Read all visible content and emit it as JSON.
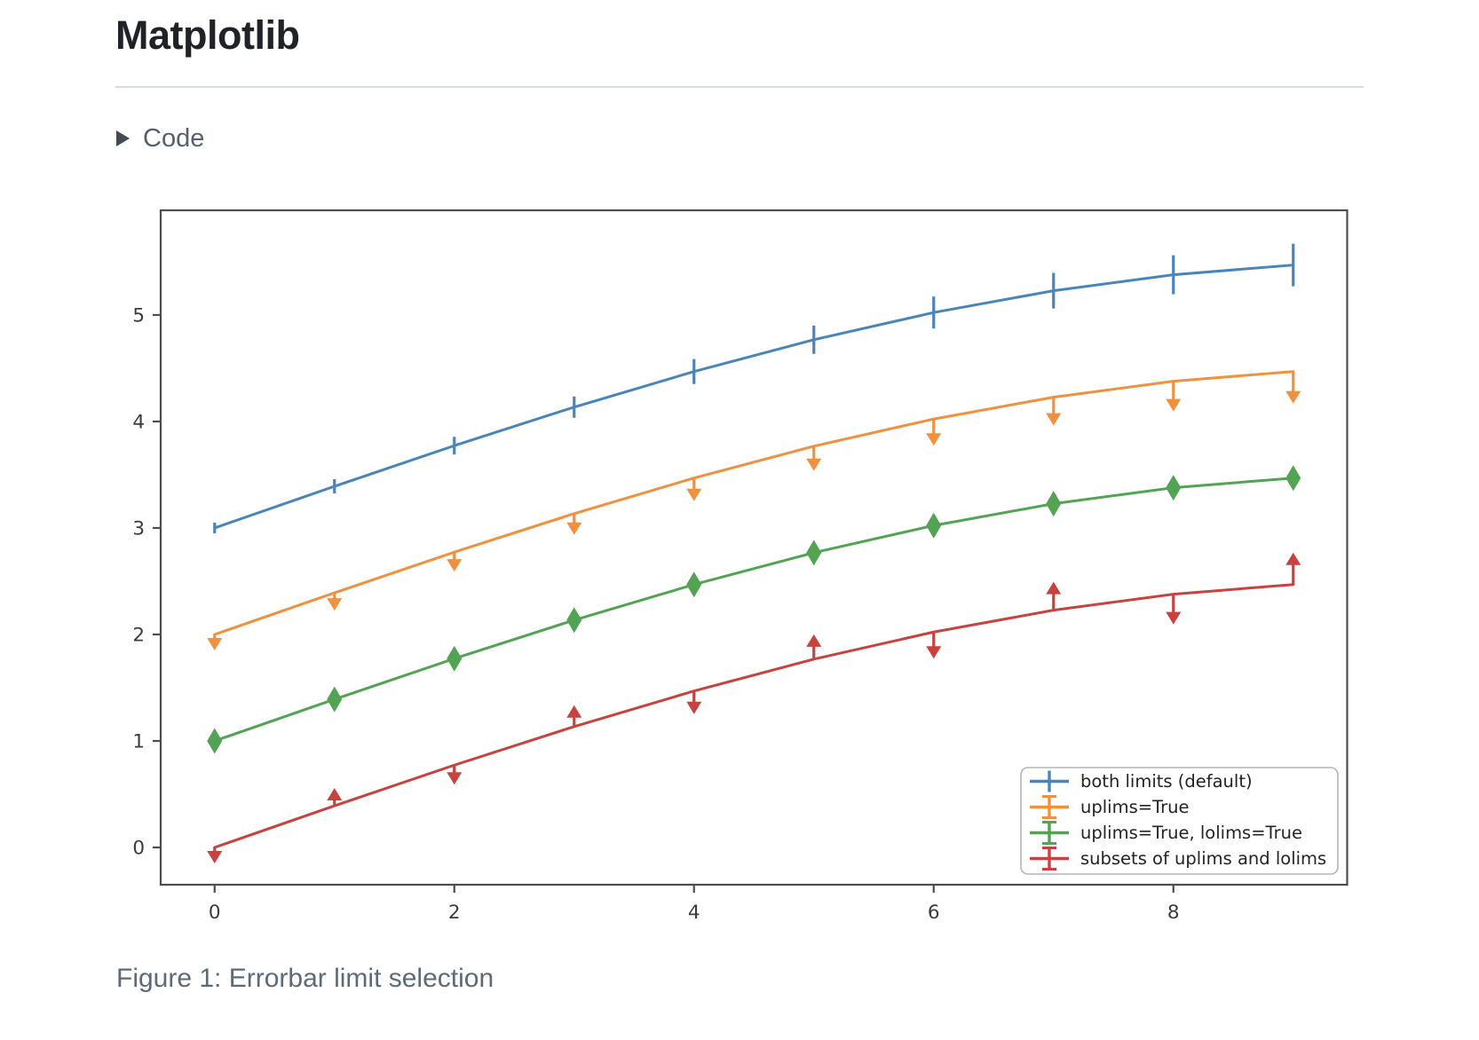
{
  "page": {
    "title": "Matplotlib",
    "code_toggle": {
      "label": "Code",
      "icon": "triangle-right-icon"
    },
    "figure_caption": "Figure 1: Errorbar limit selection",
    "colors": {
      "title": "#1f2328",
      "code_label": "#57606a",
      "caption": "#5d6a79",
      "divider": "#d7dbe0",
      "toggle_triangle": "#424a53"
    }
  },
  "chart_data": {
    "type": "line",
    "title": "",
    "xlabel": "",
    "ylabel": "",
    "x": [
      0,
      1,
      2,
      3,
      4,
      5,
      6,
      7,
      8,
      9
    ],
    "series": [
      {
        "name": "both limits (default)",
        "color": "#4a85b9",
        "limit_style": "bars",
        "values": [
          3.0,
          3.391,
          3.773,
          4.135,
          4.469,
          4.768,
          5.023,
          5.228,
          5.378,
          5.469
        ]
      },
      {
        "name": "uplims=True",
        "color": "#f0913f",
        "limit_style": "uplims",
        "values": [
          2.0,
          2.391,
          2.773,
          3.135,
          3.469,
          3.768,
          4.023,
          4.228,
          4.378,
          4.469
        ]
      },
      {
        "name": "uplims=True, lolims=True",
        "color": "#53a354",
        "limit_style": "uplims_lolims",
        "values": [
          1.0,
          1.391,
          1.773,
          2.135,
          2.469,
          2.768,
          3.023,
          3.228,
          3.378,
          3.469
        ]
      },
      {
        "name": "subsets of uplims and lolims",
        "color": "#c8423f",
        "limit_style": "alternating",
        "uplims_indices": [
          0,
          2,
          4,
          6,
          8
        ],
        "lolims_indices": [
          1,
          3,
          5,
          7,
          9
        ],
        "values": [
          0.0,
          0.391,
          0.773,
          1.135,
          1.469,
          1.768,
          2.023,
          2.228,
          2.378,
          2.469
        ]
      }
    ],
    "yerr": [
      0.05,
      0.067,
      0.083,
      0.1,
      0.117,
      0.133,
      0.15,
      0.167,
      0.183,
      0.2
    ],
    "xticks": [
      0,
      2,
      4,
      6,
      8
    ],
    "yticks": [
      0,
      1,
      2,
      3,
      4,
      5
    ],
    "xlim": [
      -0.45,
      9.45
    ],
    "ylim": [
      -0.35,
      5.983
    ],
    "grid": false,
    "legend": {
      "position": "lower right",
      "entries": [
        "both limits (default)",
        "uplims=True",
        "uplims=True, lolims=True",
        "subsets of uplims and lolims"
      ]
    },
    "style": {
      "frame_color": "#4d4d4d",
      "tick_label_color": "#3c3c3c",
      "legend_border_color": "#b5b5b5",
      "legend_text_color": "#242424",
      "legend_bg": "rgba(255,255,255,0.85)"
    }
  }
}
